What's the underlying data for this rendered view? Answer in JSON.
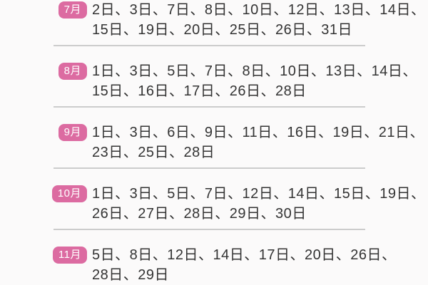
{
  "title": "monthly-date-list",
  "colors": {
    "badge_bg": "#dc6ba1",
    "badge_text": "#ffffff",
    "date_text": "#333333",
    "divider": "#cccccc",
    "background": "#fbfafa"
  },
  "sections": [
    {
      "month": "7月",
      "line1": "2日、3日、7日、8日、10日、12日、13日、14日、",
      "line2": "15日、19日、20日、25日、26日、31日"
    },
    {
      "month": "8月",
      "line1": "1日、3日、5日、7日、8日、10日、13日、14日、",
      "line2": "15日、16日、17日、26日、28日"
    },
    {
      "month": "9月",
      "line1": "1日、3日、6日、9日、11日、16日、19日、21日、",
      "line2": "23日、25日、28日"
    },
    {
      "month": "10月",
      "line1": "1日、3日、5日、7日、12日、14日、15日、19日、",
      "line2": "26日、27日、28日、29日、30日"
    },
    {
      "month": "11月",
      "line1": "5日、8日、12日、14日、17日、20日、26日、",
      "line2": "28日、29日"
    }
  ]
}
